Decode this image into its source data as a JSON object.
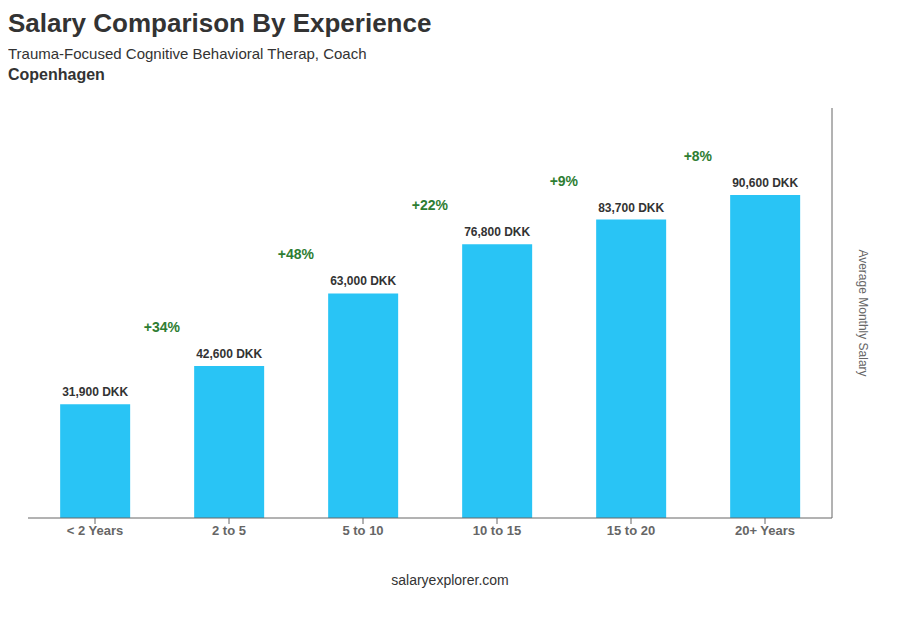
{
  "chart_data": {
    "type": "bar",
    "title": "Salary Comparison By Experience",
    "subtitle": "Trauma-Focused Cognitive Behavioral Therap, Coach",
    "annotations": [
      "Copenhagen",
      "salaryexplorer.com"
    ],
    "ylabel": "Average Monthly Salary",
    "categories": [
      "< 2 Years",
      "2 to 5",
      "5 to 10",
      "10 to 15",
      "15 to 20",
      "20+ Years"
    ],
    "values": [
      31900,
      42600,
      63000,
      76800,
      83700,
      90600
    ],
    "value_labels": [
      "31,900 DKK",
      "42,600 DKK",
      "63,000 DKK",
      "76,800 DKK",
      "83,700 DKK",
      "90,600 DKK"
    ],
    "change_labels": [
      "+34%",
      "+48%",
      "+22%",
      "+9%",
      "+8%"
    ],
    "color": "#29C4F5",
    "ylim": [
      0,
      115000
    ],
    "yticks": [],
    "grid": false,
    "data_labels": true,
    "tick_labels": "x"
  }
}
